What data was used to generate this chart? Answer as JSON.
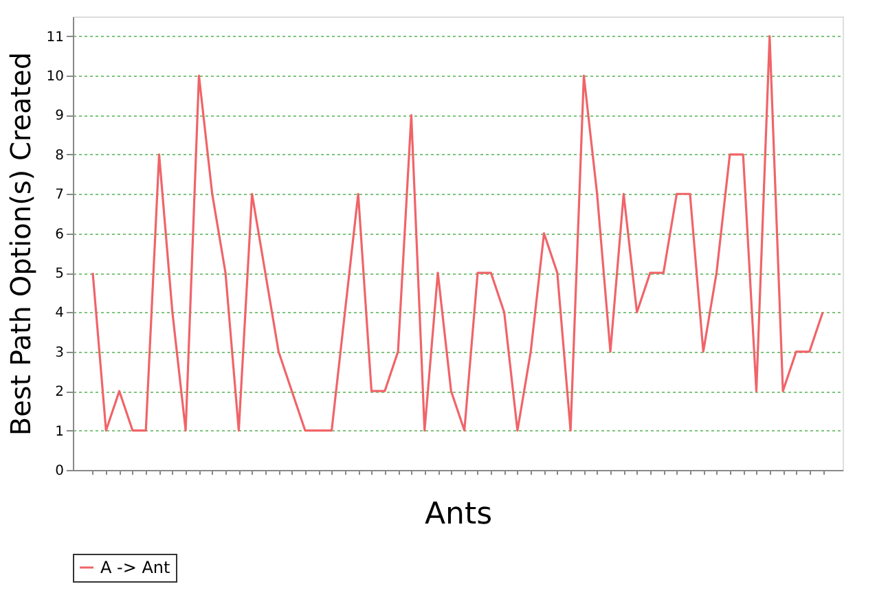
{
  "chart_data": {
    "type": "line",
    "xlabel": "Ants",
    "ylabel": "Best Path Option(s) Created",
    "categories": [
      null,
      null,
      null,
      null,
      null,
      null,
      null,
      null,
      null,
      null,
      null,
      null,
      null,
      null,
      null,
      null,
      null,
      null,
      null,
      null,
      null,
      null,
      null,
      null,
      null,
      null,
      null,
      null,
      null,
      null,
      null,
      null,
      null,
      null,
      null,
      null,
      null,
      null,
      null,
      null,
      null,
      null,
      null,
      null,
      null,
      null,
      null,
      null,
      null,
      null,
      null,
      null,
      null,
      null,
      null,
      null
    ],
    "series": [
      {
        "name": "A -> Ant",
        "color": "#f06468",
        "values": [
          5,
          1,
          2,
          1,
          1,
          8,
          4,
          1,
          10,
          7,
          5,
          1,
          7,
          5,
          3,
          2,
          1,
          1,
          1,
          4,
          7,
          2,
          2,
          3,
          9,
          1,
          5,
          2,
          1,
          5,
          5,
          4,
          1,
          3,
          6,
          5,
          1,
          10,
          7,
          3,
          7,
          4,
          5,
          5,
          7,
          7,
          3,
          5,
          8,
          8,
          2,
          11,
          2,
          3,
          3,
          4
        ]
      }
    ],
    "ylim": [
      0,
      11.5
    ],
    "yticks": [
      0,
      1,
      2,
      3,
      4,
      5,
      6,
      7,
      8,
      9,
      10,
      11
    ],
    "grid": "y",
    "legend": "bottom",
    "tick_labels": "y",
    "marker": "none",
    "line_style": "solid"
  }
}
